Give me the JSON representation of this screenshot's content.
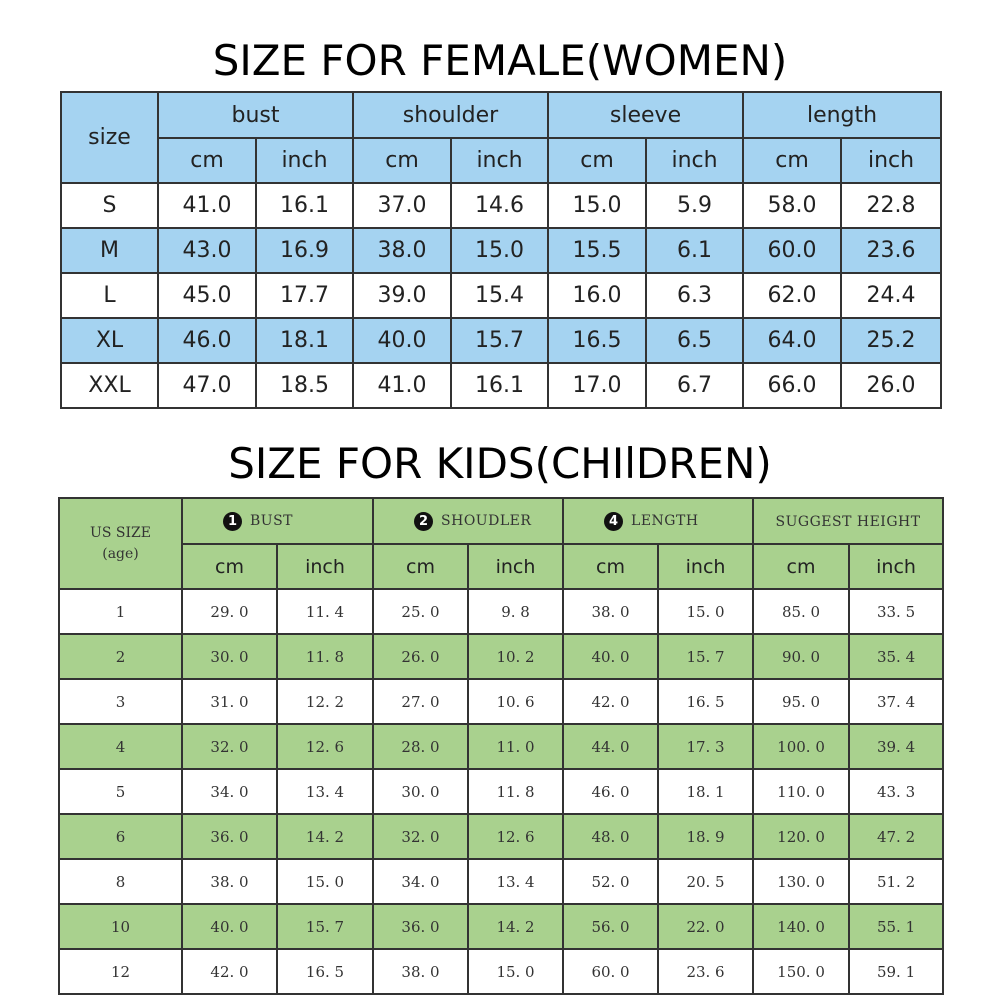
{
  "women": {
    "title": "SIZE FOR FEMALE(WOMEN)",
    "size_label": "size",
    "groups": [
      "bust",
      "shoulder",
      "sleeve",
      "length"
    ],
    "units": [
      "cm",
      "inch"
    ],
    "rows": [
      [
        "S",
        "41.0",
        "16.1",
        "37.0",
        "14.6",
        "15.0",
        "5.9",
        "58.0",
        "22.8"
      ],
      [
        "M",
        "43.0",
        "16.9",
        "38.0",
        "15.0",
        "15.5",
        "6.1",
        "60.0",
        "23.6"
      ],
      [
        "L",
        "45.0",
        "17.7",
        "39.0",
        "15.4",
        "16.0",
        "6.3",
        "62.0",
        "24.4"
      ],
      [
        "XL",
        "46.0",
        "18.1",
        "40.0",
        "15.7",
        "16.5",
        "6.5",
        "64.0",
        "25.2"
      ],
      [
        "XXL",
        "47.0",
        "18.5",
        "41.0",
        "16.1",
        "17.0",
        "6.7",
        "66.0",
        "26.0"
      ]
    ]
  },
  "kids": {
    "title": "SIZE FOR KIDS(CHIlDREN)",
    "size_label_line1": "US SIZE",
    "size_label_line2": "(age)",
    "groups": [
      {
        "badge": "1",
        "label": "BUST"
      },
      {
        "badge": "2",
        "label": "SHOUDLER"
      },
      {
        "badge": "4",
        "label": "LENGTH"
      },
      {
        "badge": "",
        "label": "SUGGEST HEIGHT"
      }
    ],
    "units": [
      "cm",
      "inch"
    ],
    "rows": [
      [
        "1",
        "29. 0",
        "11. 4",
        "25. 0",
        "9. 8",
        "38. 0",
        "15. 0",
        "85. 0",
        "33. 5"
      ],
      [
        "2",
        "30. 0",
        "11. 8",
        "26. 0",
        "10. 2",
        "40. 0",
        "15. 7",
        "90. 0",
        "35. 4"
      ],
      [
        "3",
        "31. 0",
        "12. 2",
        "27. 0",
        "10. 6",
        "42. 0",
        "16. 5",
        "95. 0",
        "37. 4"
      ],
      [
        "4",
        "32. 0",
        "12. 6",
        "28. 0",
        "11. 0",
        "44. 0",
        "17. 3",
        "100. 0",
        "39. 4"
      ],
      [
        "5",
        "34. 0",
        "13. 4",
        "30. 0",
        "11. 8",
        "46. 0",
        "18. 1",
        "110. 0",
        "43. 3"
      ],
      [
        "6",
        "36. 0",
        "14. 2",
        "32. 0",
        "12. 6",
        "48. 0",
        "18. 9",
        "120. 0",
        "47. 2"
      ],
      [
        "8",
        "38. 0",
        "15. 0",
        "34. 0",
        "13. 4",
        "52. 0",
        "20. 5",
        "130. 0",
        "51. 2"
      ],
      [
        "10",
        "40. 0",
        "15. 7",
        "36. 0",
        "14. 2",
        "56. 0",
        "22. 0",
        "140. 0",
        "55. 1"
      ],
      [
        "12",
        "42. 0",
        "16. 5",
        "38. 0",
        "15. 0",
        "60. 0",
        "23. 6",
        "150. 0",
        "59. 1"
      ]
    ]
  }
}
